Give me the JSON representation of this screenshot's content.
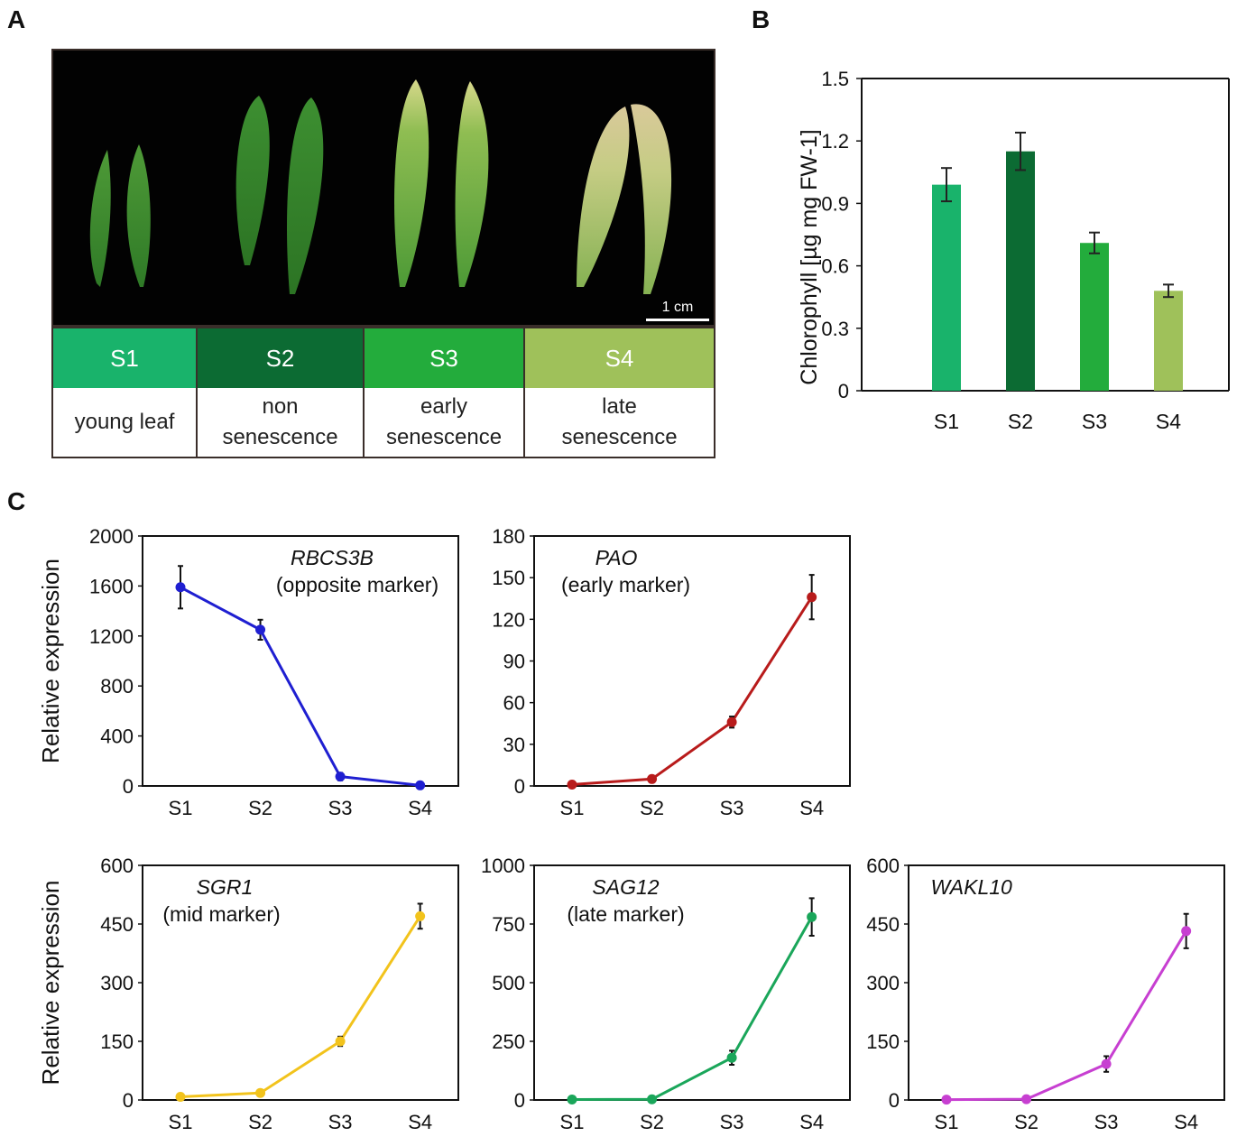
{
  "panels": {
    "a": "A",
    "b": "B",
    "c": "C"
  },
  "photo": {
    "scale_bar_label": "1 cm"
  },
  "stages": [
    {
      "code": "S1",
      "line1": "young leaf",
      "line2": "",
      "color": "#19b36b"
    },
    {
      "code": "S2",
      "line1": "non",
      "line2": "senescence",
      "color": "#0c6b33"
    },
    {
      "code": "S3",
      "line1": "early",
      "line2": "senescence",
      "color": "#23ac3c"
    },
    {
      "code": "S4",
      "line1": "late",
      "line2": "senescence",
      "color": "#9fc15a"
    }
  ],
  "chart_data": [
    {
      "id": "B",
      "type": "bar",
      "title": "",
      "ylabel": "Chlorophyll [µg mg FW-1]",
      "categories": [
        "S1",
        "S2",
        "S3",
        "S4"
      ],
      "values": [
        0.99,
        1.15,
        0.71,
        0.48
      ],
      "errors": [
        0.08,
        0.09,
        0.05,
        0.03
      ],
      "colors": [
        "#19b36b",
        "#0c6b33",
        "#23ac3c",
        "#9fc15a"
      ],
      "ylim": [
        0,
        1.5
      ],
      "yticks": [
        "0",
        "0.3",
        "0.6",
        "0.9",
        "1.2",
        "1.5"
      ]
    },
    {
      "id": "RBCS3B",
      "type": "line",
      "gene": "RBCS3B",
      "marker_label": "(opposite marker)",
      "ylabel": "Relative  expression",
      "categories": [
        "S1",
        "S2",
        "S3",
        "S4"
      ],
      "values": [
        1590,
        1250,
        75,
        5
      ],
      "errors": [
        170,
        80,
        30,
        5
      ],
      "color": "#1f1fd1",
      "ylim": [
        0,
        2000
      ],
      "yticks": [
        "0",
        "400",
        "800",
        "1200",
        "1600",
        "2000"
      ]
    },
    {
      "id": "PAO",
      "type": "line",
      "gene": "PAO",
      "marker_label": "(early marker)",
      "ylabel": "",
      "categories": [
        "S1",
        "S2",
        "S3",
        "S4"
      ],
      "values": [
        1,
        5,
        46,
        136
      ],
      "errors": [
        0.5,
        1,
        4,
        16
      ],
      "color": "#b81b1b",
      "ylim": [
        0,
        180
      ],
      "yticks": [
        "0",
        "30",
        "60",
        "90",
        "120",
        "150",
        "180"
      ]
    },
    {
      "id": "SGR1",
      "type": "line",
      "gene": "SGR1",
      "marker_label": "(mid marker)",
      "ylabel": "Relative  expression",
      "categories": [
        "S1",
        "S2",
        "S3",
        "S4"
      ],
      "values": [
        8,
        18,
        150,
        470
      ],
      "errors": [
        4,
        4,
        12,
        32
      ],
      "color": "#f2c31c",
      "ylim": [
        0,
        600
      ],
      "yticks": [
        "0",
        "150",
        "300",
        "450",
        "600"
      ]
    },
    {
      "id": "SAG12",
      "type": "line",
      "gene": "SAG12",
      "marker_label": "(late marker)",
      "ylabel": "",
      "categories": [
        "S1",
        "S2",
        "S3",
        "S4"
      ],
      "values": [
        2,
        3,
        180,
        780
      ],
      "errors": [
        1,
        1,
        30,
        80
      ],
      "color": "#1aa65a",
      "ylim": [
        0,
        1000
      ],
      "yticks": [
        "0",
        "250",
        "500",
        "750",
        "1000"
      ]
    },
    {
      "id": "WAKL10",
      "type": "line",
      "gene": "WAKL10",
      "marker_label": "",
      "ylabel": "",
      "categories": [
        "S1",
        "S2",
        "S3",
        "S4"
      ],
      "values": [
        1,
        2,
        92,
        432
      ],
      "errors": [
        1,
        1,
        20,
        44
      ],
      "color": "#c73fd1",
      "ylim": [
        0,
        600
      ],
      "yticks": [
        "0",
        "150",
        "300",
        "450",
        "600"
      ]
    }
  ]
}
